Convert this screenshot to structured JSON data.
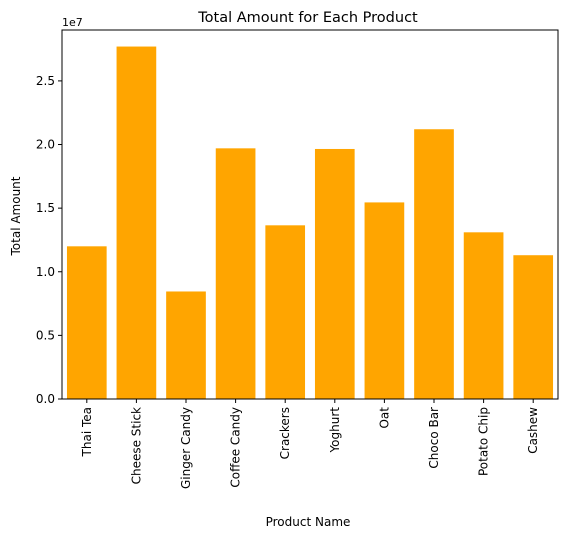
{
  "chart_data": {
    "type": "bar",
    "title": "Total Amount for Each Product",
    "xlabel": "Product Name",
    "ylabel": "Total Amount",
    "y_offset_label": "1e7",
    "categories": [
      "Thai Tea",
      "Cheese Stick",
      "Ginger Candy",
      "Coffee Candy",
      "Crackers",
      "Yoghurt",
      "Oat",
      "Choco Bar",
      "Potato Chip",
      "Cashew"
    ],
    "values": [
      12000000,
      27700000,
      8450000,
      19700000,
      13650000,
      19650000,
      15450000,
      21200000,
      13100000,
      11300000
    ],
    "ylim": [
      0,
      29000000
    ],
    "yticks": [
      0,
      5000000,
      10000000,
      15000000,
      20000000,
      25000000
    ],
    "ytick_labels": [
      "0.0",
      "0.5",
      "1.0",
      "1.5",
      "2.0",
      "2.5"
    ],
    "bar_color": "#FFA500",
    "grid": false,
    "legend": "none"
  }
}
